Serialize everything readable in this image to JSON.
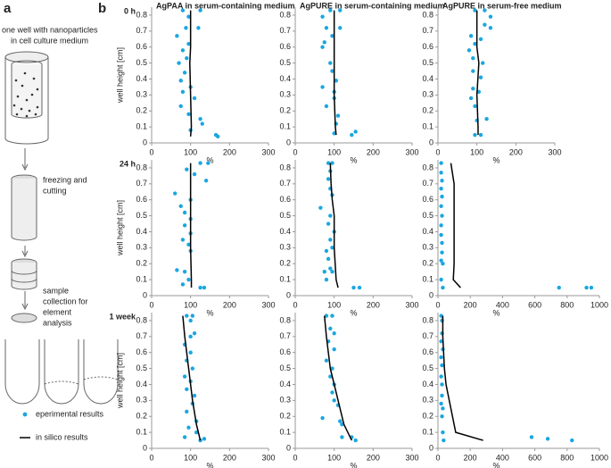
{
  "panel_labels": [
    "a",
    "b"
  ],
  "panel_a": {
    "well": [
      "one well with nanoparticles",
      "in cell culture medium"
    ],
    "freezing": [
      "freezing and",
      "cutting"
    ],
    "sample": [
      "sample",
      "collection for",
      "element",
      "analysis"
    ]
  },
  "chart_data": [
    {
      "type": "scatter",
      "title": "AgPAA in serum-containing medium",
      "row_label": "0 h",
      "ylabel": "well height [cm]",
      "xlabel": "%",
      "xlim": [
        0,
        300
      ],
      "xticks": [
        0,
        100,
        200,
        300
      ],
      "ylim": [
        0,
        0.85
      ],
      "yticks": [
        0,
        0.1,
        0.2,
        0.3,
        0.4,
        0.5,
        0.6,
        0.7,
        0.8
      ],
      "series": [
        {
          "name": "eperimental results",
          "color": "#1aa7e0",
          "x": [
            80,
            125,
            95,
            120,
            88,
            65,
            95,
            80,
            90,
            70,
            85,
            75,
            100,
            80,
            110,
            75,
            95,
            125,
            130,
            100,
            165,
            170
          ],
          "values": [
            0.83,
            0.83,
            0.79,
            0.72,
            0.72,
            0.67,
            0.62,
            0.58,
            0.53,
            0.5,
            0.44,
            0.39,
            0.35,
            0.32,
            0.28,
            0.23,
            0.18,
            0.15,
            0.12,
            0.08,
            0.05,
            0.04
          ]
        },
        {
          "name": "in silico results",
          "type": "line",
          "color": "#000000",
          "x": [
            100,
            100,
            98,
            100,
            102,
            100
          ],
          "values": [
            0.83,
            0.6,
            0.5,
            0.3,
            0.1,
            0.04
          ]
        }
      ]
    },
    {
      "type": "scatter",
      "title": "AgPURE in serum-containing medium",
      "xlabel": "%",
      "xlim": [
        0,
        300
      ],
      "xticks": [
        0,
        100,
        200,
        300
      ],
      "ylim": [
        0,
        0.85
      ],
      "yticks": [
        0,
        0.1,
        0.2,
        0.3,
        0.4,
        0.5,
        0.6,
        0.7,
        0.8
      ],
      "series": [
        {
          "color": "#1aa7e0",
          "x": [
            90,
            115,
            70,
            115,
            80,
            95,
            75,
            70,
            90,
            95,
            105,
            70,
            100,
            100,
            80,
            110,
            105,
            100,
            145,
            155
          ],
          "values": [
            0.83,
            0.83,
            0.79,
            0.72,
            0.72,
            0.67,
            0.63,
            0.6,
            0.5,
            0.45,
            0.39,
            0.35,
            0.32,
            0.28,
            0.23,
            0.17,
            0.12,
            0.06,
            0.05,
            0.07
          ]
        },
        {
          "type": "line",
          "color": "#000000",
          "x": [
            100,
            100,
            100,
            100,
            103,
            105
          ],
          "values": [
            0.83,
            0.6,
            0.5,
            0.3,
            0.1,
            0.05
          ]
        }
      ]
    },
    {
      "type": "scatter",
      "title": "AgPURE in serum-free medium",
      "xlabel": "%",
      "xlim": [
        0,
        300
      ],
      "xticks": [
        0,
        100,
        200,
        300
      ],
      "ylim": [
        0,
        0.85
      ],
      "yticks": [
        0,
        0.1,
        0.2,
        0.3,
        0.4,
        0.5,
        0.6,
        0.7,
        0.8
      ],
      "series": [
        {
          "color": "#1aa7e0",
          "x": [
            95,
            120,
            135,
            120,
            135,
            85,
            110,
            95,
            80,
            90,
            115,
            90,
            110,
            90,
            105,
            85,
            95,
            125,
            100,
            110,
            95
          ],
          "values": [
            0.83,
            0.83,
            0.79,
            0.74,
            0.72,
            0.67,
            0.65,
            0.62,
            0.58,
            0.53,
            0.5,
            0.45,
            0.41,
            0.34,
            0.32,
            0.28,
            0.23,
            0.15,
            0.14,
            0.05,
            0.05
          ]
        },
        {
          "type": "line",
          "color": "#000000",
          "x": [
            100,
            100,
            105,
            100,
            103,
            103
          ],
          "values": [
            0.83,
            0.6,
            0.5,
            0.3,
            0.1,
            0.05
          ]
        }
      ]
    },
    {
      "type": "scatter",
      "row_label": "24 h",
      "ylabel": "well height [cm]",
      "xlabel": "%",
      "xlim": [
        0,
        300
      ],
      "xticks": [
        0,
        100,
        200,
        300
      ],
      "ylim": [
        0,
        0.85
      ],
      "yticks": [
        0,
        0.1,
        0.2,
        0.3,
        0.4,
        0.5,
        0.6,
        0.7,
        0.8
      ],
      "series": [
        {
          "color": "#1aa7e0",
          "x": [
            125,
            145,
            90,
            110,
            140,
            60,
            100,
            75,
            85,
            100,
            85,
            100,
            80,
            95,
            100,
            65,
            85,
            95,
            80,
            125,
            135
          ],
          "values": [
            0.83,
            0.83,
            0.79,
            0.76,
            0.72,
            0.64,
            0.6,
            0.56,
            0.52,
            0.48,
            0.44,
            0.39,
            0.35,
            0.32,
            0.28,
            0.16,
            0.15,
            0.1,
            0.07,
            0.05,
            0.05
          ]
        },
        {
          "type": "line",
          "color": "#000000",
          "x": [
            100,
            100,
            100,
            100,
            102,
            102
          ],
          "values": [
            0.83,
            0.6,
            0.5,
            0.3,
            0.1,
            0.05
          ]
        }
      ]
    },
    {
      "type": "scatter",
      "xlabel": "%",
      "xlim": [
        0,
        300
      ],
      "xticks": [
        0,
        100,
        200,
        300
      ],
      "ylim": [
        0,
        0.85
      ],
      "yticks": [
        0,
        0.1,
        0.2,
        0.3,
        0.4,
        0.5,
        0.6,
        0.7,
        0.8
      ],
      "series": [
        {
          "color": "#1aa7e0",
          "x": [
            85,
            95,
            90,
            85,
            90,
            95,
            65,
            90,
            85,
            100,
            90,
            95,
            80,
            85,
            90,
            75,
            95,
            80,
            150,
            165
          ],
          "values": [
            0.83,
            0.83,
            0.78,
            0.73,
            0.67,
            0.63,
            0.55,
            0.5,
            0.45,
            0.4,
            0.35,
            0.3,
            0.28,
            0.23,
            0.17,
            0.15,
            0.15,
            0.1,
            0.05,
            0.05
          ]
        },
        {
          "type": "line",
          "color": "#000000",
          "x": [
            90,
            92,
            95,
            100,
            100,
            105,
            110
          ],
          "values": [
            0.83,
            0.7,
            0.6,
            0.5,
            0.3,
            0.1,
            0.05
          ]
        }
      ]
    },
    {
      "type": "scatter",
      "xlabel": "%",
      "xlim": [
        0,
        1000
      ],
      "xticks": [
        0,
        200,
        400,
        600,
        800,
        1000
      ],
      "ylim": [
        0,
        0.85
      ],
      "yticks": [
        0,
        0.1,
        0.2,
        0.3,
        0.4,
        0.5,
        0.6,
        0.7,
        0.8
      ],
      "series": [
        {
          "color": "#1aa7e0",
          "x": [
            20,
            20,
            25,
            20,
            25,
            20,
            25,
            20,
            20,
            25,
            25,
            20,
            30,
            20,
            30,
            750,
            920,
            950
          ],
          "values": [
            0.83,
            0.77,
            0.72,
            0.67,
            0.62,
            0.56,
            0.5,
            0.44,
            0.38,
            0.33,
            0.27,
            0.22,
            0.2,
            0.1,
            0.05,
            0.05,
            0.05,
            0.05
          ]
        },
        {
          "type": "line",
          "color": "#000000",
          "x": [
            80,
            100,
            100,
            100,
            100,
            95,
            140
          ],
          "values": [
            0.83,
            0.7,
            0.6,
            0.5,
            0.2,
            0.1,
            0.05
          ]
        }
      ]
    },
    {
      "type": "scatter",
      "row_label": "1 week",
      "ylabel": "well height [cm]",
      "xlabel": "%",
      "xlim": [
        0,
        300
      ],
      "xticks": [
        0,
        100,
        200,
        300
      ],
      "ylim": [
        0,
        0.85
      ],
      "yticks": [
        0,
        0.1,
        0.2,
        0.3,
        0.4,
        0.5,
        0.6,
        0.7,
        0.8
      ],
      "series": [
        {
          "color": "#1aa7e0",
          "x": [
            90,
            105,
            100,
            110,
            100,
            85,
            100,
            90,
            105,
            85,
            100,
            90,
            110,
            105,
            90,
            115,
            95,
            115,
            85,
            135,
            125
          ],
          "values": [
            0.83,
            0.83,
            0.8,
            0.72,
            0.7,
            0.65,
            0.6,
            0.55,
            0.5,
            0.45,
            0.42,
            0.37,
            0.33,
            0.28,
            0.23,
            0.17,
            0.13,
            0.1,
            0.07,
            0.06,
            0.05
          ]
        },
        {
          "type": "line",
          "color": "#000000",
          "x": [
            80,
            85,
            90,
            95,
            100,
            105,
            115,
            125
          ],
          "values": [
            0.83,
            0.7,
            0.6,
            0.5,
            0.4,
            0.3,
            0.15,
            0.05
          ]
        }
      ]
    },
    {
      "type": "scatter",
      "xlabel": "%",
      "xlim": [
        0,
        300
      ],
      "xticks": [
        0,
        100,
        200,
        300
      ],
      "ylim": [
        0,
        0.85
      ],
      "yticks": [
        0,
        0.1,
        0.2,
        0.3,
        0.4,
        0.5,
        0.6,
        0.7,
        0.8
      ],
      "series": [
        {
          "color": "#1aa7e0",
          "x": [
            80,
            95,
            90,
            100,
            85,
            100,
            80,
            95,
            90,
            100,
            95,
            100,
            110,
            70,
            115,
            120,
            120,
            145,
            155
          ],
          "values": [
            0.83,
            0.83,
            0.75,
            0.72,
            0.67,
            0.62,
            0.55,
            0.5,
            0.45,
            0.4,
            0.35,
            0.3,
            0.27,
            0.19,
            0.17,
            0.15,
            0.07,
            0.07,
            0.05
          ]
        },
        {
          "type": "line",
          "color": "#000000",
          "x": [
            75,
            80,
            85,
            90,
            100,
            110,
            125,
            145
          ],
          "values": [
            0.83,
            0.7,
            0.6,
            0.5,
            0.4,
            0.3,
            0.15,
            0.05
          ]
        }
      ]
    },
    {
      "type": "scatter",
      "xlabel": "%",
      "xlim": [
        0,
        1000
      ],
      "xticks": [
        0,
        200,
        400,
        600,
        800,
        1000
      ],
      "ylim": [
        0,
        0.85
      ],
      "yticks": [
        0,
        0.1,
        0.2,
        0.3,
        0.4,
        0.5,
        0.6,
        0.7,
        0.8
      ],
      "series": [
        {
          "color": "#1aa7e0",
          "x": [
            20,
            25,
            25,
            20,
            30,
            20,
            25,
            20,
            25,
            25,
            20,
            30,
            25,
            30,
            35,
            580,
            680,
            830
          ],
          "values": [
            0.83,
            0.8,
            0.72,
            0.67,
            0.62,
            0.57,
            0.52,
            0.45,
            0.4,
            0.33,
            0.28,
            0.25,
            0.2,
            0.1,
            0.05,
            0.07,
            0.06,
            0.05
          ]
        },
        {
          "type": "line",
          "color": "#000000",
          "x": [
            30,
            30,
            35,
            40,
            50,
            70,
            110,
            280
          ],
          "values": [
            0.83,
            0.7,
            0.6,
            0.5,
            0.4,
            0.3,
            0.1,
            0.05
          ]
        }
      ]
    }
  ]
}
